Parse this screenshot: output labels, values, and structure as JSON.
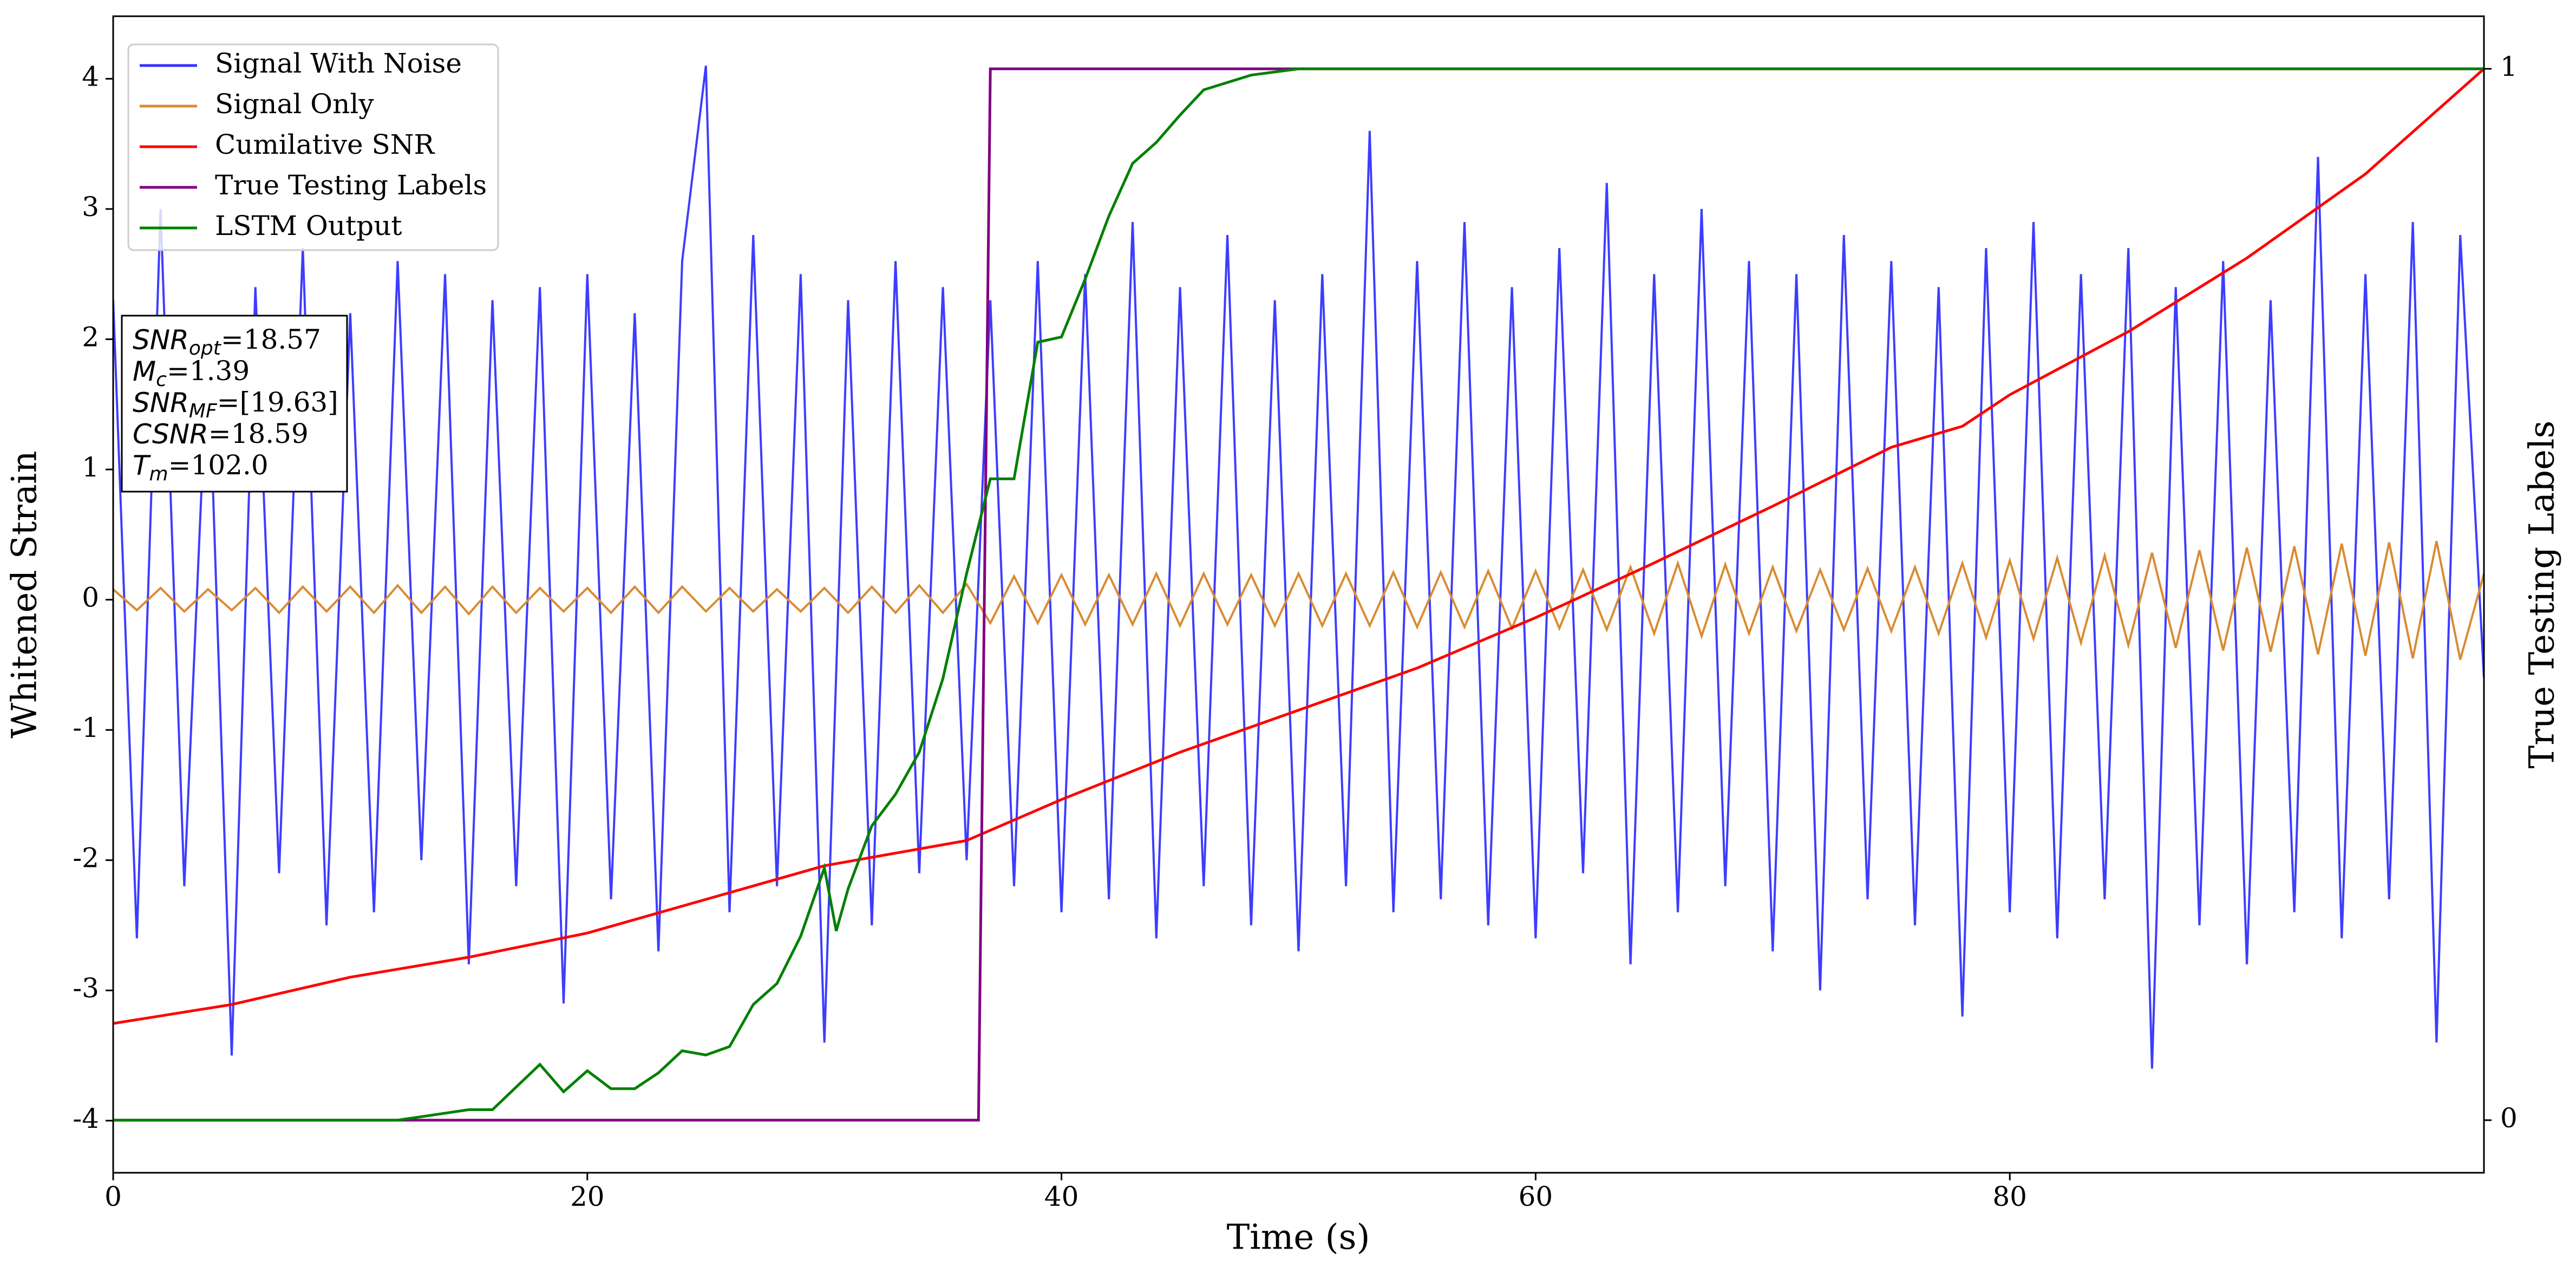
{
  "chart_data": {
    "type": "line",
    "xlabel": "Time (s)",
    "ylabel": "Whitened Strain",
    "y2label": "True Testing Labels",
    "xlim": [
      0,
      100
    ],
    "ylim": [
      -4.4,
      4.48
    ],
    "y2lim": [
      -0.05,
      1.05
    ],
    "xticks": [
      0,
      20,
      40,
      60,
      80
    ],
    "yticks": [
      -4,
      -3,
      -2,
      -1,
      0,
      1,
      2,
      3,
      4
    ],
    "y2ticks": [
      0,
      1
    ],
    "legend": "upper left",
    "x": [
      0,
      1,
      2,
      3,
      4,
      5,
      6,
      7,
      8,
      9,
      10,
      11,
      12,
      13,
      14,
      15,
      16,
      17,
      18,
      19,
      20,
      21,
      22,
      23,
      24,
      25,
      26,
      27,
      28,
      29,
      30,
      31,
      32,
      33,
      34,
      35,
      36,
      37,
      38,
      39,
      40,
      41,
      42,
      43,
      44,
      45,
      46,
      47,
      48,
      49,
      50,
      51,
      52,
      53,
      54,
      55,
      56,
      57,
      58,
      59,
      60,
      61,
      62,
      63,
      64,
      65,
      66,
      67,
      68,
      69,
      70,
      71,
      72,
      73,
      74,
      75,
      76,
      77,
      78,
      79,
      80,
      81,
      82,
      83,
      84,
      85,
      86,
      87,
      88,
      89,
      90,
      91,
      92,
      93,
      94,
      95,
      96,
      97,
      98,
      99,
      100
    ],
    "series": [
      {
        "name": "Signal With Noise",
        "color": "#3333ff",
        "values": [
          2.3,
          -2.6,
          3.0,
          -2.2,
          2.0,
          -3.5,
          2.4,
          -2.1,
          2.7,
          -2.5,
          2.2,
          -2.4,
          2.6,
          -2.0,
          2.5,
          -2.8,
          2.3,
          -2.2,
          2.4,
          -3.1,
          2.5,
          -2.3,
          2.2,
          -2.7,
          2.6,
          4.1,
          -2.4,
          2.8,
          -2.2,
          2.5,
          -3.4,
          2.3,
          -2.5,
          2.6,
          -2.1,
          2.4,
          -2.0,
          2.3,
          -2.2,
          2.6,
          -2.4,
          2.5,
          -2.3,
          2.9,
          -2.6,
          2.4,
          -2.2,
          2.8,
          -2.5,
          2.3,
          -2.7,
          2.5,
          -2.2,
          3.6,
          -2.4,
          2.6,
          -2.3,
          2.9,
          -2.5,
          2.4,
          -2.6,
          2.7,
          -2.1,
          3.2,
          -2.8,
          2.5,
          -2.4,
          3.0,
          -2.2,
          2.6,
          -2.7,
          2.5,
          -3.0,
          2.8,
          -2.3,
          2.6,
          -2.5,
          2.4,
          -3.2,
          2.7,
          -2.4,
          2.9,
          -2.6,
          2.5,
          -2.3,
          2.7,
          -3.6,
          2.4,
          -2.5,
          2.6,
          -2.8,
          2.3,
          -2.4,
          3.4,
          -2.6,
          2.5,
          -2.3,
          2.9,
          -3.4,
          2.8,
          -0.6
        ]
      },
      {
        "name": "Signal Only",
        "color": "#d98b33",
        "values": [
          0.08,
          -0.08,
          0.09,
          -0.09,
          0.08,
          -0.08,
          0.09,
          -0.1,
          0.1,
          -0.09,
          0.1,
          -0.1,
          0.11,
          -0.1,
          0.1,
          -0.11,
          0.1,
          -0.1,
          0.09,
          -0.09,
          0.09,
          -0.1,
          0.1,
          -0.1,
          0.1,
          -0.09,
          0.09,
          -0.09,
          0.08,
          -0.09,
          0.09,
          -0.1,
          0.1,
          -0.1,
          0.11,
          -0.1,
          0.12,
          -0.18,
          0.18,
          -0.18,
          0.19,
          -0.19,
          0.19,
          -0.19,
          0.2,
          -0.2,
          0.2,
          -0.19,
          0.19,
          -0.2,
          0.2,
          -0.2,
          0.2,
          -0.2,
          0.21,
          -0.21,
          0.21,
          -0.21,
          0.22,
          -0.22,
          0.22,
          -0.22,
          0.23,
          -0.23,
          0.25,
          -0.26,
          0.28,
          -0.28,
          0.27,
          -0.26,
          0.25,
          -0.24,
          0.23,
          -0.23,
          0.24,
          -0.24,
          0.25,
          -0.26,
          0.28,
          -0.29,
          0.3,
          -0.3,
          0.32,
          -0.33,
          0.34,
          -0.35,
          0.36,
          -0.37,
          0.38,
          -0.39,
          0.4,
          -0.4,
          0.41,
          -0.42,
          0.43,
          -0.43,
          0.44,
          -0.45,
          0.45,
          -0.46,
          0.2
        ]
      },
      {
        "name": "Cumilative SNR",
        "color": "#ff0000",
        "axis": "y2",
        "x": [
          0,
          5,
          10,
          15,
          20,
          25,
          30,
          36,
          40,
          45,
          50,
          55,
          60,
          65,
          70,
          75,
          78,
          80,
          85,
          90,
          95,
          100
        ],
        "values": [
          0.092,
          0.11,
          0.136,
          0.155,
          0.178,
          0.21,
          0.242,
          0.266,
          0.305,
          0.35,
          0.39,
          0.43,
          0.478,
          0.53,
          0.584,
          0.64,
          0.66,
          0.69,
          0.75,
          0.82,
          0.9,
          1.0
        ]
      },
      {
        "name": "True Testing Labels",
        "color": "#800080",
        "axis": "y2",
        "x": [
          0,
          36.5,
          37,
          100
        ],
        "values": [
          0,
          0,
          1,
          1
        ]
      },
      {
        "name": "LSTM Output",
        "color": "#008000",
        "axis": "y2",
        "x": [
          0,
          12,
          15,
          16,
          18,
          19,
          20,
          21,
          22,
          23,
          24,
          25,
          26,
          27,
          28,
          29,
          30,
          30.5,
          31,
          32,
          33,
          34,
          35,
          36,
          37,
          38,
          39,
          40,
          41,
          42,
          43,
          44,
          45,
          46,
          48,
          50,
          100
        ],
        "values": [
          0,
          0,
          0.01,
          0.01,
          0.053,
          0.027,
          0.047,
          0.03,
          0.03,
          0.045,
          0.066,
          0.062,
          0.07,
          0.11,
          0.13,
          0.175,
          0.24,
          0.18,
          0.22,
          0.28,
          0.31,
          0.35,
          0.42,
          0.52,
          0.61,
          0.61,
          0.74,
          0.745,
          0.8,
          0.86,
          0.91,
          0.93,
          0.956,
          0.98,
          0.994,
          1.0,
          1.0
        ]
      }
    ],
    "annotation": [
      {
        "main": "SNR",
        "sub": "opt",
        "rest": "=18.57"
      },
      {
        "main": "M",
        "sub": "c",
        "rest": "=1.39"
      },
      {
        "main": "SNR",
        "sub": "MF",
        "rest": "=[19.63]"
      },
      {
        "main": "CSNR",
        "sub": "",
        "rest": "=18.59"
      },
      {
        "main": "T",
        "sub": "m",
        "rest": "=102.0"
      }
    ]
  }
}
